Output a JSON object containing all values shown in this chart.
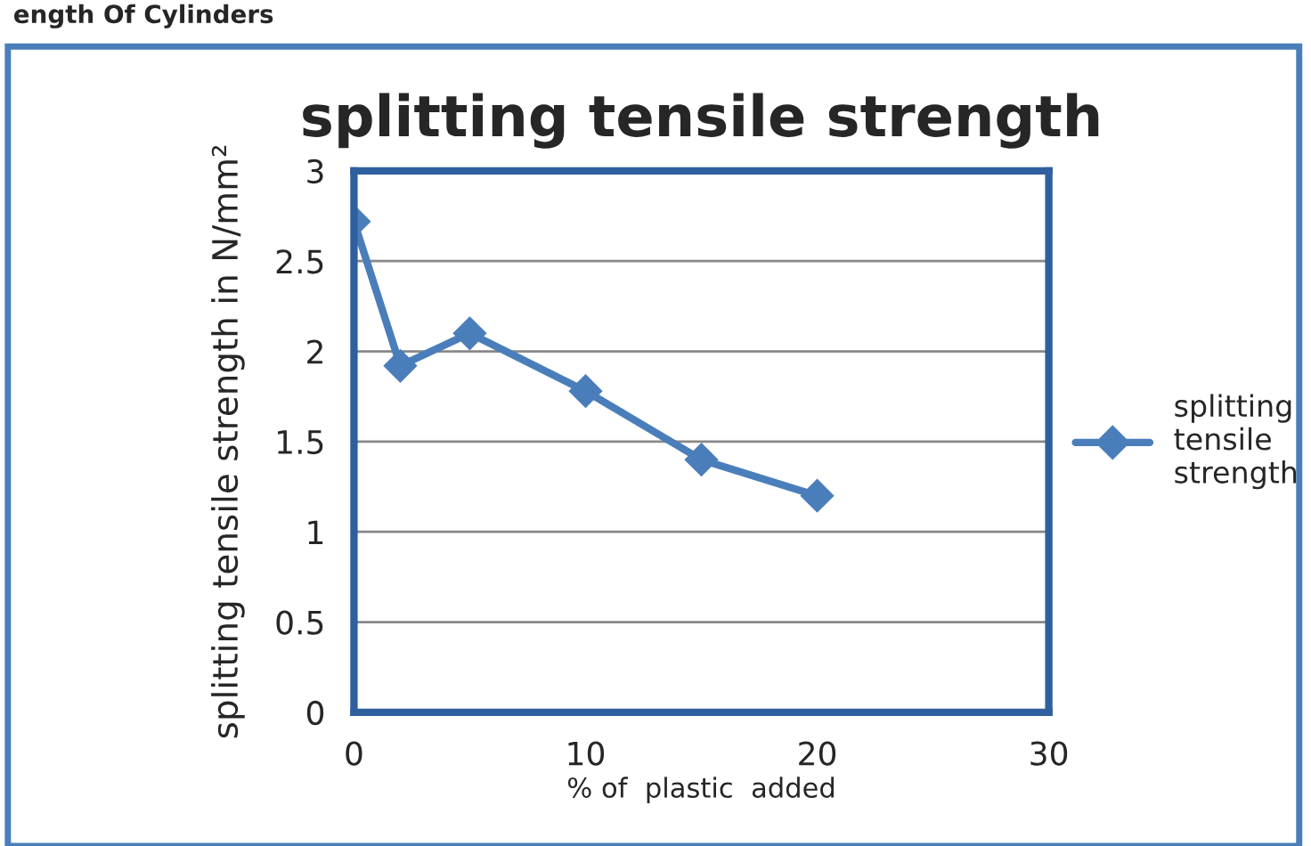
{
  "chart_data": {
    "type": "line",
    "title": "splitting tensile strength",
    "xlabel": "% of  plastic  added",
    "ylabel": "splitting tensile strength in N/mm²",
    "annotations": [
      "ength Of Cylinders"
    ],
    "x": [
      0,
      2,
      5,
      10,
      15,
      20
    ],
    "series": [
      {
        "name": "splitting tensile strength",
        "color": "#4a7ebb",
        "values": [
          2.72,
          1.92,
          2.1,
          1.78,
          1.4,
          1.2
        ]
      }
    ],
    "xlim": [
      0,
      30
    ],
    "xticks": [
      0,
      10,
      20,
      30
    ],
    "ylim": [
      0,
      3
    ],
    "yticks": [
      0,
      0.5,
      1,
      1.5,
      2,
      2.5,
      3
    ],
    "grid": "y",
    "legend": "right",
    "marker": "diamond",
    "line_style": "solid"
  }
}
